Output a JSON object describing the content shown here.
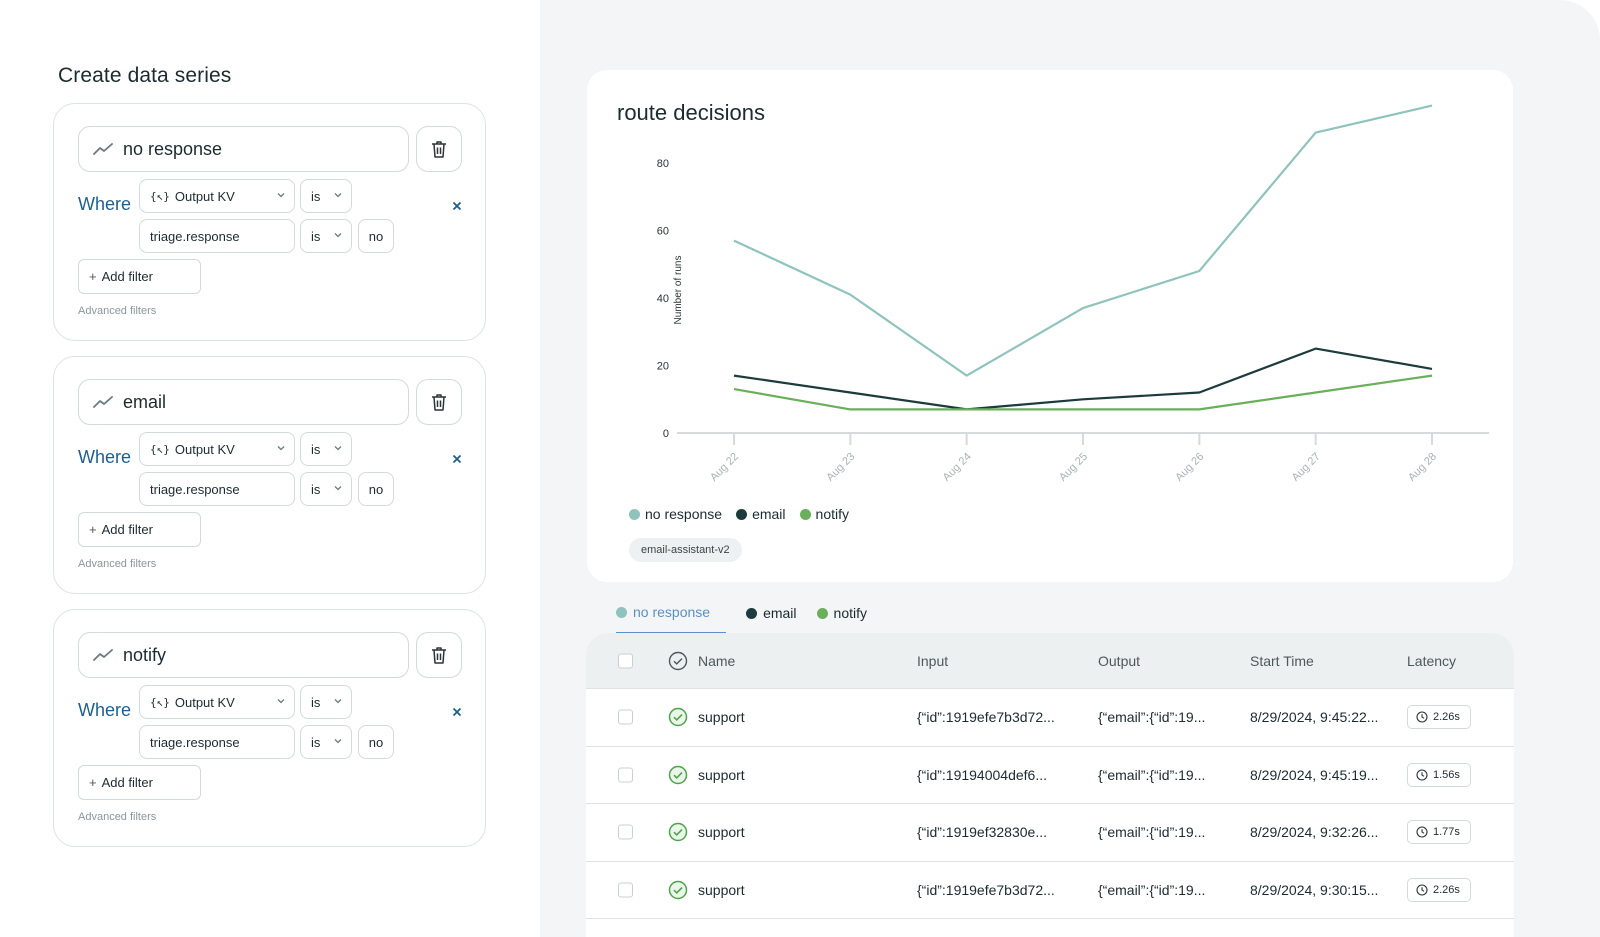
{
  "left": {
    "title": "Create data series",
    "series": [
      {
        "name": "no response",
        "where": "Where",
        "field_type": "Output KV",
        "op1": "is",
        "path": "triage.response",
        "op2": "is",
        "value": "no",
        "add_filter": "Add filter",
        "advanced": "Advanced filters"
      },
      {
        "name": "email",
        "where": "Where",
        "field_type": "Output KV",
        "op1": "is",
        "path": "triage.response",
        "op2": "is",
        "value": "no",
        "add_filter": "Add filter",
        "advanced": "Advanced filters"
      },
      {
        "name": "notify",
        "where": "Where",
        "field_type": "Output KV",
        "op1": "is",
        "path": "triage.response",
        "op2": "is",
        "value": "no",
        "add_filter": "Add filter",
        "advanced": "Advanced filters"
      }
    ]
  },
  "chart": {
    "title": "route decisions",
    "tag": "email-assistant-v2",
    "legend": [
      {
        "name": "no response",
        "color": "#8fc3bd"
      },
      {
        "name": "email",
        "color": "#1d3b3c"
      },
      {
        "name": "notify",
        "color": "#6aaf5a"
      }
    ]
  },
  "chart_data": {
    "type": "line",
    "title": "route decisions",
    "xlabel": "",
    "ylabel": "Number of runs",
    "ylim": [
      0,
      80
    ],
    "yticks": [
      0,
      20,
      40,
      60,
      80
    ],
    "x": [
      "Aug 22",
      "Aug 23",
      "Aug 24",
      "Aug 25",
      "Aug 26",
      "Aug 27",
      "Aug 28"
    ],
    "series": [
      {
        "name": "no response",
        "color": "#8fc3bd",
        "values": [
          57,
          41,
          17,
          37,
          48,
          89,
          97
        ]
      },
      {
        "name": "email",
        "color": "#1d3b3c",
        "values": [
          17,
          12,
          7,
          10,
          12,
          25,
          19
        ]
      },
      {
        "name": "notify",
        "color": "#6aaf5a",
        "values": [
          13,
          7,
          7,
          7,
          7,
          12,
          17
        ]
      }
    ],
    "legend_position": "bottom-left",
    "grid": false
  },
  "tabs": [
    {
      "label": "no response",
      "color": "#8fc3bd",
      "active": true
    },
    {
      "label": "email",
      "color": "#1d3b3c",
      "active": false
    },
    {
      "label": "notify",
      "color": "#6aaf5a",
      "active": false
    }
  ],
  "table": {
    "headers": {
      "name": "Name",
      "input": "Input",
      "output": "Output",
      "start": "Start Time",
      "latency": "Latency"
    },
    "rows": [
      {
        "name": "support",
        "input": "{“id”:1919efe7b3d72...",
        "output": "{“email”:{“id”:19...",
        "start": "8/29/2024, 9:45:22...",
        "latency": "2.26s"
      },
      {
        "name": "support",
        "input": "{“id”:19194004def6...",
        "output": "{“email”:{“id”:19...",
        "start": "8/29/2024, 9:45:19...",
        "latency": "1.56s"
      },
      {
        "name": "support",
        "input": "{“id”:1919ef32830e...",
        "output": "{“email”:{“id”:19...",
        "start": "8/29/2024, 9:32:26...",
        "latency": "1.77s"
      },
      {
        "name": "support",
        "input": "{“id”:1919efe7b3d72...",
        "output": "{“email”:{“id”:19...",
        "start": "8/29/2024, 9:30:15...",
        "latency": "2.26s"
      }
    ]
  }
}
